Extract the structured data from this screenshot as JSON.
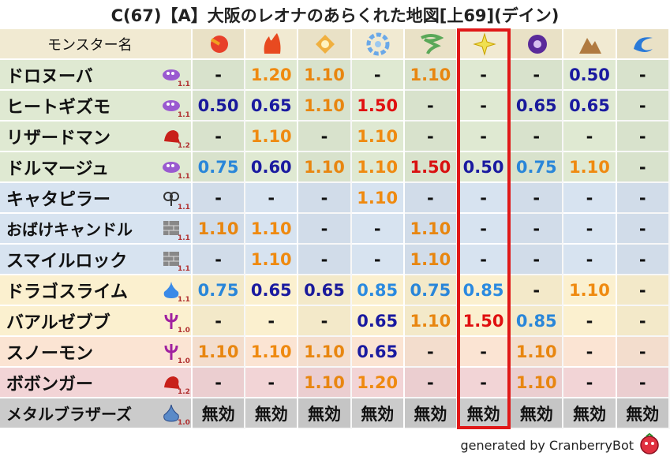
{
  "title": "C(67)【A】大阪のレオナのあらくれた地図[上69](デイン)",
  "table": {
    "header": [
      "モンスター名"
    ],
    "rows": [
      {
        "name": "ドロヌーバ",
        "level": "1.1",
        "color": "#dfe9d2",
        "cells": [
          "-",
          "1.20",
          "1.10",
          "-",
          "1.10",
          "-",
          "-",
          "0.50",
          "-"
        ]
      },
      {
        "name": "ヒートギズモ",
        "level": "1.1",
        "color": "#dfe9d2",
        "cells": [
          "0.50",
          "0.65",
          "1.10",
          "1.50",
          "-",
          "-",
          "0.65",
          "0.65",
          "-"
        ]
      },
      {
        "name": "リザードマン",
        "level": "1.2",
        "color": "#dfe9d2",
        "cells": [
          "-",
          "1.10",
          "-",
          "1.10",
          "-",
          "-",
          "-",
          "-",
          "-"
        ]
      },
      {
        "name": "ドルマージュ",
        "level": "1.1",
        "color": "#dfe9d2",
        "cells": [
          "0.75",
          "0.60",
          "1.10",
          "1.10",
          "1.50",
          "0.50",
          "0.75",
          "1.10",
          "-"
        ]
      },
      {
        "name": "キャタピラー",
        "level": "1.1",
        "color": "#d7e3f0",
        "cells": [
          "-",
          "-",
          "-",
          "1.10",
          "-",
          "-",
          "-",
          "-",
          "-"
        ]
      },
      {
        "name": "おばけキャンドル",
        "level": "1.1",
        "color": "#d7e3f0",
        "cells": [
          "1.10",
          "1.10",
          "-",
          "-",
          "1.10",
          "-",
          "-",
          "-",
          "-"
        ]
      },
      {
        "name": "スマイルロック",
        "level": "1.1",
        "color": "#d7e3f0",
        "cells": [
          "-",
          "1.10",
          "-",
          "-",
          "1.10",
          "-",
          "-",
          "-",
          "-"
        ]
      },
      {
        "name": "ドラゴスライム",
        "level": "1.1",
        "color": "#fbf0cf",
        "cells": [
          "0.75",
          "0.65",
          "0.65",
          "0.85",
          "0.75",
          "0.85",
          "-",
          "1.10",
          "-"
        ]
      },
      {
        "name": "バアルゼブブ",
        "level": "1.0",
        "color": "#fbf0cf",
        "cells": [
          "-",
          "-",
          "-",
          "0.65",
          "1.10",
          "1.50",
          "0.85",
          "-",
          "-"
        ]
      },
      {
        "name": "スノーモン",
        "level": "1.0",
        "color": "#fbe4d3",
        "cells": [
          "1.10",
          "1.10",
          "1.10",
          "0.65",
          "-",
          "-",
          "1.10",
          "-",
          "-"
        ]
      },
      {
        "name": "ボボンガー",
        "level": "1.2",
        "color": "#f2d4d6",
        "cells": [
          "-",
          "-",
          "1.10",
          "1.20",
          "-",
          "-",
          "1.10",
          "-",
          "-"
        ]
      },
      {
        "name": "メタルブラザーズ",
        "level": "1.0",
        "color": "#cbcbcb",
        "cells": [
          "無効",
          "無効",
          "無効",
          "無効",
          "無効",
          "無効",
          "無効",
          "無効",
          "無効"
        ]
      }
    ]
  },
  "footer": "generated by CranberryBot"
}
